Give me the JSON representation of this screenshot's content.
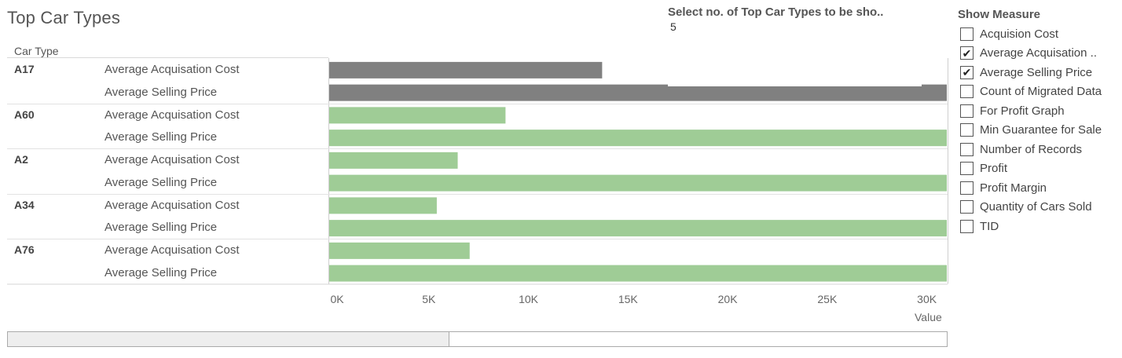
{
  "title": "Top Car Types",
  "column_header": "Car Type",
  "selector": {
    "title": "Select no. of Top Car Types to be sho..",
    "value": "5"
  },
  "measure_panel": {
    "title": "Show Measure",
    "items": [
      {
        "label": "Acquision Cost",
        "checked": false
      },
      {
        "label": "Average Acquisation ..",
        "checked": true
      },
      {
        "label": "Average Selling Price",
        "checked": true
      },
      {
        "label": "Count of Migrated Data",
        "checked": false
      },
      {
        "label": "For Profit Graph",
        "checked": false
      },
      {
        "label": "Min Guarantee for Sale",
        "checked": false
      },
      {
        "label": "Number of Records",
        "checked": false
      },
      {
        "label": "Profit",
        "checked": false
      },
      {
        "label": "Profit Margin",
        "checked": false
      },
      {
        "label": "Quantity of Cars Sold",
        "checked": false
      },
      {
        "label": "TID",
        "checked": false
      }
    ]
  },
  "colors": {
    "highlight": "#808080",
    "bar": "#9fcc96"
  },
  "chart_data": {
    "type": "bar",
    "orientation": "horizontal",
    "categories": [
      "A17",
      "A60",
      "A2",
      "A34",
      "A76"
    ],
    "series": [
      {
        "name": "Average Acquisation Cost",
        "values": [
          13700,
          8850,
          6450,
          5400,
          7050
        ]
      },
      {
        "name": "Average Selling Price",
        "values": [
          31000,
          31000,
          31000,
          31000,
          31000
        ]
      }
    ],
    "highlighted_category": "A17",
    "xlabel": "Value",
    "xlim": [
      0,
      31000
    ],
    "xticks": [
      "0K",
      "5K",
      "10K",
      "15K",
      "20K",
      "25K",
      "30K"
    ],
    "xtick_values": [
      0,
      5000,
      10000,
      15000,
      20000,
      25000,
      30000
    ]
  },
  "scrollbar": {
    "position_fraction": 0.0,
    "visible_fraction": 0.47
  }
}
